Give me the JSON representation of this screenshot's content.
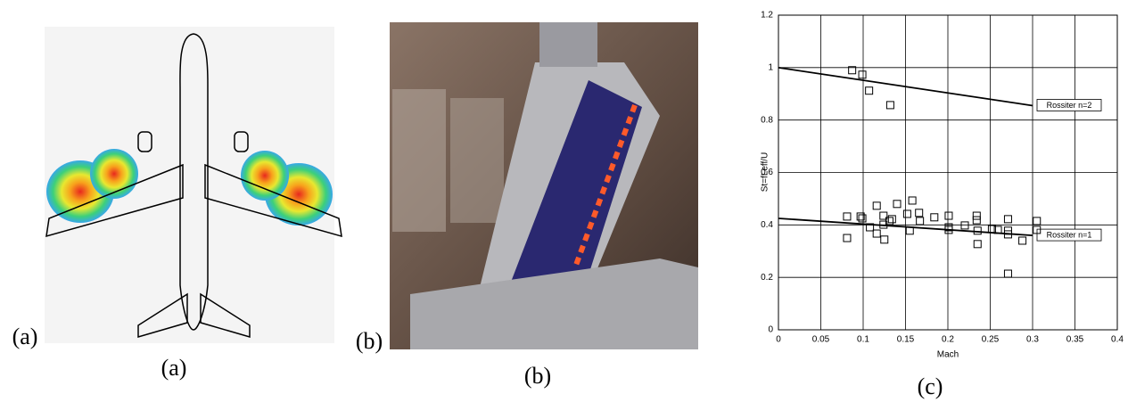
{
  "panel_labels": [
    "(a)",
    "(a)",
    "(b)",
    "(b)",
    "(c)"
  ],
  "chart_data": {
    "type": "scatter",
    "x_label": "Mach",
    "y_label": "St=fLeff/U",
    "xlim": [
      0,
      0.4
    ],
    "xticks": [
      0,
      0.05,
      0.1,
      0.15,
      0.2,
      0.25,
      0.3,
      0.35,
      0.4
    ],
    "ylim": [
      0,
      1.2
    ],
    "yticks": [
      0,
      0.2,
      0.4,
      0.6,
      0.8,
      1,
      1.2
    ],
    "grid": true,
    "x": [
      0.087,
      0.099,
      0.107,
      0.132,
      0.081,
      0.081,
      0.097,
      0.099,
      0.108,
      0.116,
      0.116,
      0.124,
      0.124,
      0.125,
      0.131,
      0.134,
      0.14,
      0.152,
      0.155,
      0.158,
      0.166,
      0.167,
      0.184,
      0.201,
      0.201,
      0.201,
      0.22,
      0.234,
      0.234,
      0.235,
      0.235,
      0.252,
      0.259,
      0.271,
      0.271,
      0.271,
      0.271,
      0.288,
      0.305,
      0.305
    ],
    "y": [
      0.99,
      0.973,
      0.912,
      0.857,
      0.432,
      0.35,
      0.432,
      0.425,
      0.391,
      0.473,
      0.367,
      0.435,
      0.401,
      0.344,
      0.415,
      0.422,
      0.48,
      0.442,
      0.378,
      0.493,
      0.446,
      0.415,
      0.429,
      0.435,
      0.391,
      0.381,
      0.398,
      0.435,
      0.418,
      0.378,
      0.327,
      0.384,
      0.381,
      0.422,
      0.378,
      0.364,
      0.214,
      0.34,
      0.415,
      0.381
    ],
    "series": [
      {
        "name": "Rossiter n=2",
        "color": "#000000",
        "x": [
          0,
          0.3
        ],
        "values": [
          1.0,
          0.855
        ]
      },
      {
        "name": "Rossiter n=1",
        "color": "#000000",
        "x": [
          0,
          0.3
        ],
        "values": [
          0.425,
          0.36
        ]
      }
    ]
  }
}
